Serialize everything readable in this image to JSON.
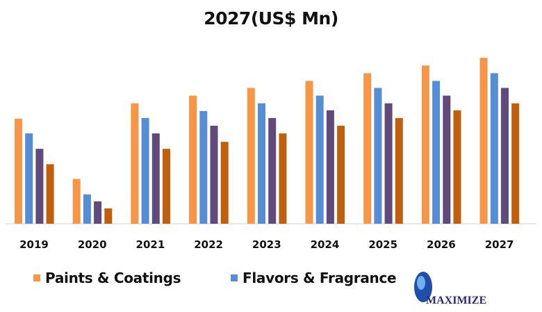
{
  "chart_data": {
    "type": "bar",
    "title": "2027(US$ Mn)",
    "categories": [
      "2019",
      "2020",
      "2021",
      "2022",
      "2023",
      "2024",
      "2025",
      "2026",
      "2027"
    ],
    "series": [
      {
        "name": "Paints & Coatings",
        "color": "#F79646",
        "values": [
          150,
          64,
          172,
          183,
          194,
          204,
          215,
          226,
          237
        ]
      },
      {
        "name": "Flavors & Fragrance",
        "color": "#558ED5",
        "values": [
          129,
          42,
          151,
          161,
          172,
          183,
          194,
          204,
          215
        ]
      },
      {
        "color": "#604A7B",
        "values": [
          107,
          32,
          129,
          140,
          151,
          162,
          172,
          183,
          194
        ]
      },
      {
        "color": "#C0600F",
        "values": [
          85,
          22,
          107,
          117,
          129,
          140,
          151,
          162,
          172
        ]
      }
    ],
    "ylim": [
      0,
      260
    ],
    "grid": false,
    "legend": "bottom"
  },
  "logo": {
    "text": "MAXIMIZE"
  }
}
